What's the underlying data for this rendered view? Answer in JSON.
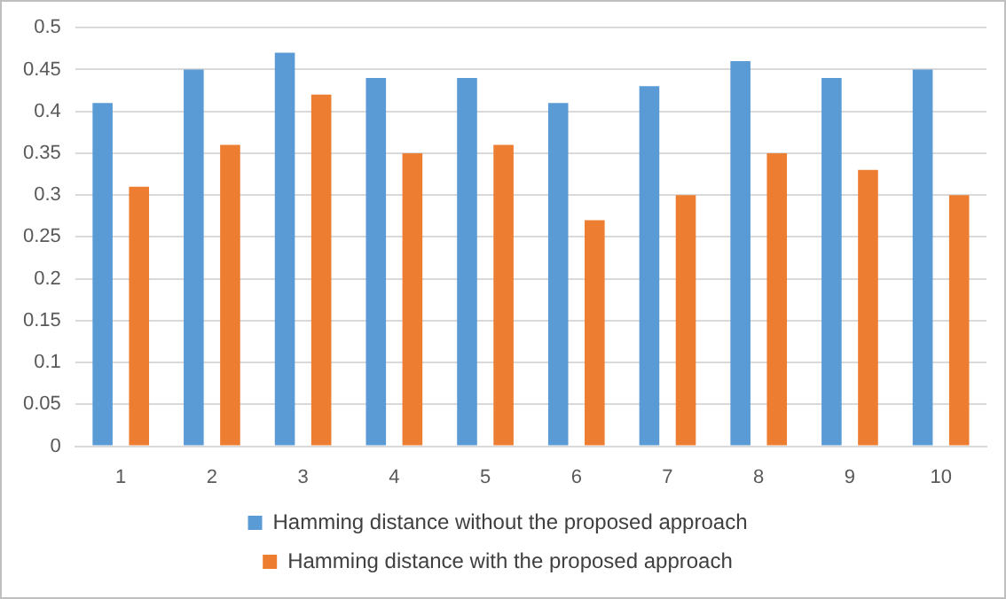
{
  "chart_data": {
    "type": "bar",
    "categories": [
      "1",
      "2",
      "3",
      "4",
      "5",
      "6",
      "7",
      "8",
      "9",
      "10"
    ],
    "series": [
      {
        "name": "Hamming distance without the proposed approach",
        "color": "#5b9bd5",
        "values": [
          0.41,
          0.45,
          0.47,
          0.44,
          0.44,
          0.41,
          0.43,
          0.46,
          0.44,
          0.45
        ]
      },
      {
        "name": "Hamming distance with the proposed approach",
        "color": "#ed7d31",
        "values": [
          0.31,
          0.36,
          0.42,
          0.35,
          0.36,
          0.27,
          0.3,
          0.35,
          0.33,
          0.3
        ]
      }
    ],
    "ylim": [
      0,
      0.5
    ],
    "yticks": [
      0,
      0.05,
      0.1,
      0.15,
      0.2,
      0.25,
      0.3,
      0.35,
      0.4,
      0.45,
      0.5
    ],
    "grid": "y",
    "legend": "bottom"
  }
}
